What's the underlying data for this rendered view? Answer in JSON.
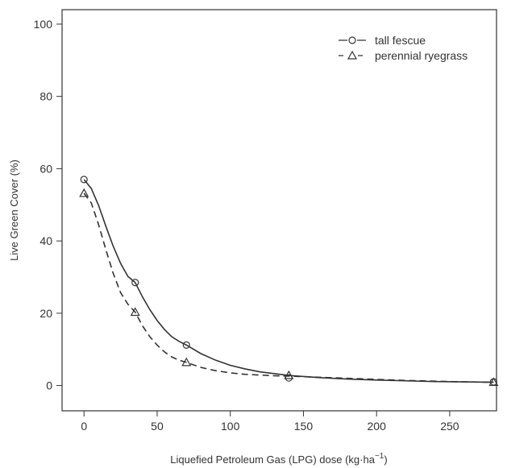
{
  "chart_data": {
    "type": "line",
    "title": "",
    "xlabel": "Liquefied Petroleum Gas (LPG) dose (kg·ha",
    "xlabel_superscript": "−1",
    "xlabel_suffix": ")",
    "ylabel": "Live Green Cover (%)",
    "xlim": [
      -15,
      282
    ],
    "ylim": [
      -7,
      104
    ],
    "x_ticks": [
      0,
      50,
      100,
      150,
      200,
      250
    ],
    "y_ticks": [
      0,
      20,
      40,
      60,
      80,
      100
    ],
    "grid": false,
    "legend_position": "top-right",
    "series": [
      {
        "name": "tall fescue",
        "marker": "circle",
        "line_style": "solid",
        "color": "#333333",
        "x": [
          0,
          35,
          70,
          140,
          280
        ],
        "y": [
          57,
          28.5,
          11.2,
          2.1,
          1.0
        ],
        "fit_x": [
          0,
          5,
          10,
          15,
          20,
          25,
          30,
          35,
          40,
          45,
          50,
          55,
          60,
          65,
          70,
          80,
          90,
          100,
          110,
          120,
          130,
          140,
          160,
          180,
          200,
          220,
          240,
          260,
          280
        ],
        "fit_y": [
          57,
          54.5,
          49.8,
          44.0,
          38.5,
          33.8,
          30.2,
          28.5,
          24.5,
          21.0,
          18.0,
          15.5,
          13.5,
          12.2,
          11.2,
          8.8,
          7.0,
          5.6,
          4.6,
          3.8,
          3.3,
          2.8,
          2.2,
          1.8,
          1.5,
          1.3,
          1.1,
          1.0,
          0.9
        ]
      },
      {
        "name": "perennial ryegrass",
        "marker": "triangle",
        "line_style": "dashed",
        "color": "#333333",
        "x": [
          0,
          35,
          70,
          140,
          280
        ],
        "y": [
          53.2,
          20.3,
          6.4,
          2.8,
          0.9
        ],
        "fit_x": [
          0,
          5,
          10,
          15,
          20,
          25,
          30,
          35,
          40,
          45,
          50,
          55,
          60,
          65,
          70,
          80,
          90,
          100,
          110,
          120,
          130,
          140,
          160,
          180,
          200,
          220,
          240,
          260,
          280
        ],
        "fit_y": [
          53.2,
          50.5,
          44.5,
          37.5,
          31.0,
          25.7,
          22.5,
          20.3,
          16.5,
          13.5,
          11.2,
          9.3,
          7.9,
          7.0,
          6.4,
          5.0,
          4.1,
          3.5,
          3.1,
          2.9,
          2.7,
          2.6,
          2.3,
          2.0,
          1.7,
          1.4,
          1.2,
          1.0,
          0.9
        ]
      }
    ]
  }
}
